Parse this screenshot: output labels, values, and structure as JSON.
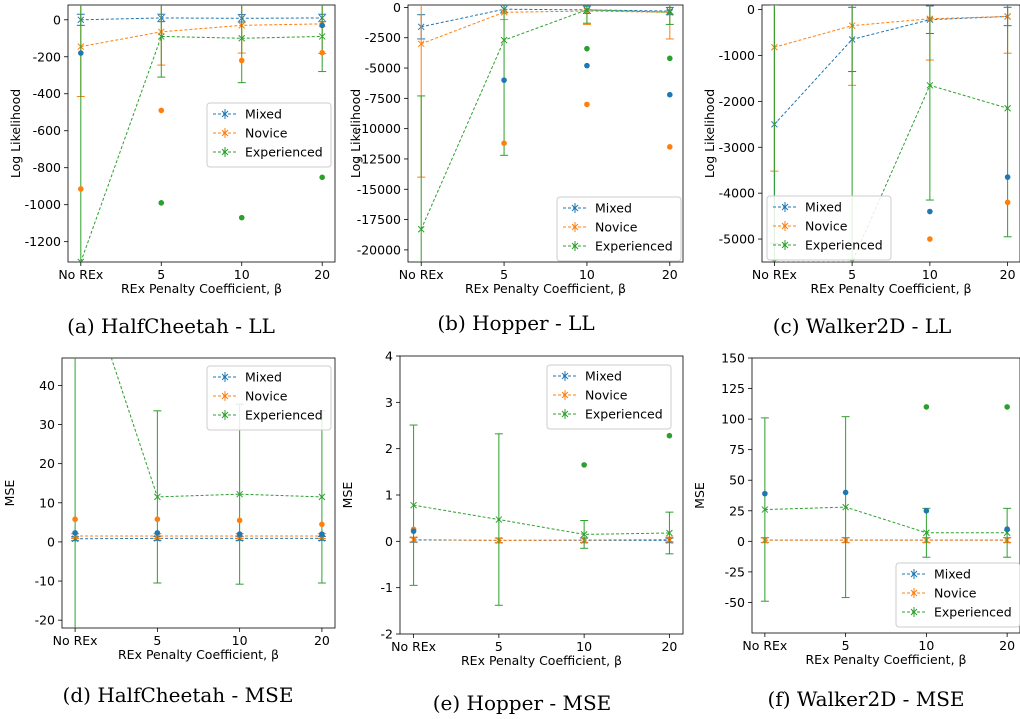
{
  "colors": {
    "Mixed": "#1f77b4",
    "Novice": "#ff7f0e",
    "Experienced": "#2ca02c"
  },
  "chart_data": [
    {
      "type": "line",
      "caption": "(a) HalfCheetah - LL",
      "xlabel": "REx Penalty Coefficient, β",
      "ylabel": "Log Likelihood",
      "categories": [
        "No REx",
        "5",
        "10",
        "20"
      ],
      "ylim": [
        -1310,
        80
      ],
      "yticks": [
        0,
        -200,
        -400,
        -600,
        -800,
        -1000,
        -1200
      ],
      "legend": "center-right",
      "series": [
        {
          "name": "Mixed",
          "values": [
            0,
            10,
            8,
            10
          ],
          "err": [
            30,
            20,
            20,
            20
          ]
        },
        {
          "name": "Novice",
          "values": [
            -145,
            -65,
            -30,
            -22
          ],
          "err": [
            270,
            180,
            150,
            160
          ]
        },
        {
          "name": "Experienced",
          "values": [
            -1310,
            -90,
            -100,
            -90
          ],
          "err": [
            1400,
            220,
            240,
            190
          ]
        }
      ],
      "points": [
        {
          "series": "Mixed",
          "x": 0,
          "y": -180
        },
        {
          "series": "Novice",
          "x": 0,
          "y": -915
        },
        {
          "series": "Novice",
          "x": 1,
          "y": -490
        },
        {
          "series": "Experienced",
          "x": 1,
          "y": -990
        },
        {
          "series": "Novice",
          "x": 2,
          "y": -220
        },
        {
          "series": "Experienced",
          "x": 2,
          "y": -1070
        },
        {
          "series": "Mixed",
          "x": 3,
          "y": -30
        },
        {
          "series": "Novice",
          "x": 3,
          "y": -178
        },
        {
          "series": "Experienced",
          "x": 3,
          "y": -852
        }
      ]
    },
    {
      "type": "line",
      "caption": "(b) Hopper - LL",
      "xlabel": "REx Penalty Coefficient, β",
      "ylabel": "Log Likelihood",
      "categories": [
        "No REx",
        "5",
        "10",
        "20"
      ],
      "ylim": [
        -21000,
        200
      ],
      "yticks": [
        0,
        -2500,
        -5000,
        -7500,
        -10000,
        -12500,
        -15000,
        -17500,
        -20000
      ],
      "legend": "lower-right",
      "series": [
        {
          "name": "Mixed",
          "values": [
            -1600,
            -150,
            -200,
            -300
          ],
          "err": [
            1000,
            300,
            300,
            300
          ]
        },
        {
          "name": "Novice",
          "values": [
            -3000,
            -400,
            -300,
            -400
          ],
          "err": [
            11000,
            600,
            1100,
            2200
          ]
        },
        {
          "name": "Experienced",
          "values": [
            -18300,
            -2700,
            -200,
            -400
          ],
          "err": [
            11000,
            9500,
            1100,
            1000
          ]
        }
      ],
      "points": [
        {
          "series": "Mixed",
          "x": 1,
          "y": -6000
        },
        {
          "series": "Novice",
          "x": 1,
          "y": -11200
        },
        {
          "series": "Mixed",
          "x": 2,
          "y": -4800
        },
        {
          "series": "Novice",
          "x": 2,
          "y": -8000
        },
        {
          "series": "Experienced",
          "x": 2,
          "y": -3400
        },
        {
          "series": "Mixed",
          "x": 3,
          "y": -7200
        },
        {
          "series": "Novice",
          "x": 3,
          "y": -11500
        },
        {
          "series": "Experienced",
          "x": 3,
          "y": -4200
        }
      ]
    },
    {
      "type": "line",
      "caption": "(c) Walker2D - LL",
      "xlabel": "REx Penalty Coefficient, β",
      "ylabel": "Log Likelihood",
      "categories": [
        "No REx",
        "5",
        "10",
        "20"
      ],
      "ylim": [
        -5500,
        100
      ],
      "yticks": [
        0,
        -1000,
        -2000,
        -3000,
        -4000,
        -5000
      ],
      "legend": "lower-left",
      "series": [
        {
          "name": "Mixed",
          "values": [
            -2500,
            -650,
            -220,
            -150
          ],
          "err": [
            2600,
            700,
            300,
            200
          ]
        },
        {
          "name": "Novice",
          "values": [
            -820,
            -350,
            -200,
            -150
          ],
          "err": [
            2700,
            1300,
            900,
            800
          ]
        },
        {
          "name": "Experienced",
          "values": [
            -5500,
            -5500,
            -1650,
            -2150
          ],
          "err": [
            6000,
            6000,
            2500,
            2800
          ]
        }
      ],
      "points": [
        {
          "series": "Mixed",
          "x": 2,
          "y": -4400
        },
        {
          "series": "Novice",
          "x": 2,
          "y": -5000
        },
        {
          "series": "Mixed",
          "x": 3,
          "y": -3650
        },
        {
          "series": "Novice",
          "x": 3,
          "y": -4200
        }
      ]
    },
    {
      "type": "line",
      "caption": "(d) HalfCheetah - MSE",
      "xlabel": "REx Penalty Coefficient, β",
      "ylabel": "MSE",
      "categories": [
        "No REx",
        "5",
        "10",
        "20"
      ],
      "ylim": [
        -22,
        47
      ],
      "yticks": [
        40,
        30,
        20,
        10,
        0,
        -10,
        -20
      ],
      "legend": "top-right",
      "series": [
        {
          "name": "Mixed",
          "values": [
            0.8,
            0.9,
            0.9,
            0.9
          ],
          "err": [
            0.5,
            0.5,
            0.5,
            0.5
          ]
        },
        {
          "name": "Novice",
          "values": [
            1.5,
            1.5,
            1.5,
            1.5
          ],
          "err": [
            0.6,
            0.6,
            0.6,
            0.6
          ]
        },
        {
          "name": "Experienced",
          "values": [
            75,
            11.5,
            12.2,
            11.5
          ],
          "err": [
            100,
            22,
            23,
            22
          ]
        }
      ],
      "points": [
        {
          "series": "Novice",
          "x": 0,
          "y": 5.8
        },
        {
          "series": "Novice",
          "x": 1,
          "y": 5.8
        },
        {
          "series": "Novice",
          "x": 2,
          "y": 5.5
        },
        {
          "series": "Novice",
          "x": 3,
          "y": 4.5
        },
        {
          "series": "Mixed",
          "x": 0,
          "y": 2.3
        },
        {
          "series": "Mixed",
          "x": 1,
          "y": 2.3
        },
        {
          "series": "Mixed",
          "x": 2,
          "y": 2.0
        },
        {
          "series": "Mixed",
          "x": 3,
          "y": 2.0
        }
      ]
    },
    {
      "type": "line",
      "caption": "(e) Hopper - MSE",
      "xlabel": "REx Penalty Coefficient, β",
      "ylabel": "MSE",
      "categories": [
        "No REx",
        "5",
        "10",
        "20"
      ],
      "ylim": [
        -2,
        4
      ],
      "yticks": [
        4,
        3,
        2,
        1,
        0,
        -1,
        -2
      ],
      "legend": "top-right",
      "series": [
        {
          "name": "Mixed",
          "values": [
            0.03,
            0.02,
            0.02,
            0.02
          ],
          "err": [
            0.05,
            0.05,
            0.05,
            0.05
          ]
        },
        {
          "name": "Novice",
          "values": [
            0.04,
            0.02,
            0.03,
            0.04
          ],
          "err": [
            0.05,
            0.05,
            0.05,
            0.05
          ]
        },
        {
          "name": "Experienced",
          "values": [
            0.78,
            0.47,
            0.15,
            0.18
          ],
          "err": [
            1.73,
            1.85,
            0.3,
            0.45
          ]
        }
      ],
      "points": [
        {
          "series": "Novice",
          "x": 0,
          "y": 0.26
        },
        {
          "series": "Mixed",
          "x": 0,
          "y": 0.22
        },
        {
          "series": "Experienced",
          "x": 2,
          "y": 1.65
        },
        {
          "series": "Experienced",
          "x": 3,
          "y": 2.28
        }
      ]
    },
    {
      "type": "line",
      "caption": "(f) Walker2D - MSE",
      "xlabel": "REx Penalty Coefficient, β",
      "ylabel": "MSE",
      "categories": [
        "No REx",
        "5",
        "10",
        "20"
      ],
      "ylim": [
        -75,
        150
      ],
      "yticks": [
        150,
        125,
        100,
        75,
        50,
        25,
        0,
        -25,
        -50
      ],
      "legend": "lower-right",
      "series": [
        {
          "name": "Mixed",
          "values": [
            1,
            1,
            1,
            1
          ],
          "err": [
            2,
            2,
            2,
            2
          ]
        },
        {
          "name": "Novice",
          "values": [
            1,
            1,
            1,
            1
          ],
          "err": [
            2,
            2,
            2,
            2
          ]
        },
        {
          "name": "Experienced",
          "values": [
            26,
            28,
            7,
            7
          ],
          "err": [
            75,
            74,
            20,
            20
          ]
        }
      ],
      "points": [
        {
          "series": "Mixed",
          "x": 0,
          "y": 39
        },
        {
          "series": "Mixed",
          "x": 1,
          "y": 40
        },
        {
          "series": "Mixed",
          "x": 2,
          "y": 25
        },
        {
          "series": "Mixed",
          "x": 3,
          "y": 10
        },
        {
          "series": "Experienced",
          "x": 2,
          "y": 110
        },
        {
          "series": "Experienced",
          "x": 3,
          "y": 110
        }
      ]
    }
  ]
}
